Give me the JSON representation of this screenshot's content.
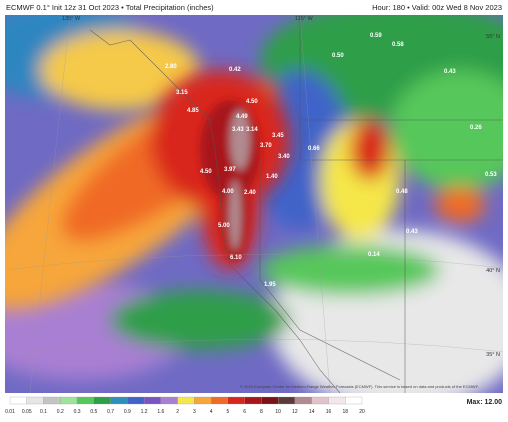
{
  "header": {
    "title": "ECMWF 0.1° Init 12z 31 Oct 2023 • Total Precipitation (inches)",
    "valid": "Hour: 180 • Valid: 00z Wed 8 Nov 2023"
  },
  "map": {
    "labels": [
      "2.80",
      "3.15",
      "4.85",
      "4.50",
      "4.49",
      "3.43",
      "3.14",
      "3.45",
      "3.70",
      "3.40",
      "4.50",
      "3.97",
      "1.40",
      "4.00",
      "2.40",
      "5.00",
      "6.10",
      "1.95",
      "0.42",
      "0.50",
      "0.59",
      "0.58",
      "0.43",
      "0.26",
      "0.66",
      "0.53",
      "0.48",
      "0.43",
      "0.14"
    ],
    "grid_labels": [
      "135° W",
      "115° W",
      "55° N",
      "40° N",
      "35° N"
    ],
    "credit": "© 2023 European Centre for Medium-Range Weather Forecasts (ECMWF). This service is based on data and products of the ECMWF."
  },
  "colorbar": {
    "ticks": [
      "0.01",
      "0.05",
      "0.1",
      "0.2",
      "0.3",
      "0.5",
      "0.7",
      "0.9",
      "1.2",
      "1.6",
      "2",
      "3",
      "4",
      "5",
      "6",
      "8",
      "10",
      "12",
      "14",
      "16",
      "18",
      "20"
    ],
    "colors": [
      "#ffffff",
      "#e6e6e6",
      "#c4c4c4",
      "#9fe39a",
      "#57c75a",
      "#2e9e49",
      "#2e8fb8",
      "#3f63c9",
      "#7a55c2",
      "#a97fd3",
      "#f5e74a",
      "#f7a63a",
      "#f06a28",
      "#d9261c",
      "#a8161a",
      "#7a1218",
      "#5c3a3a",
      "#b08a90",
      "#e3c3cb",
      "#f4e6ea",
      "#ffffff"
    ],
    "max": "Max: 12.00"
  }
}
